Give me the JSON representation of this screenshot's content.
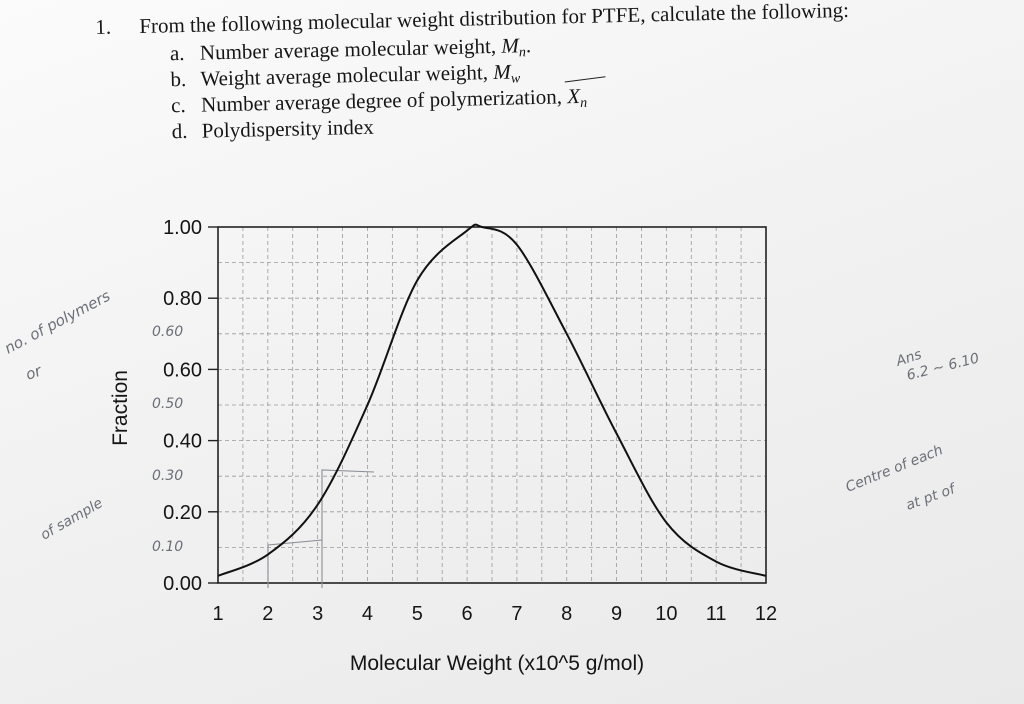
{
  "question": {
    "number": "1.",
    "stem": "From the following molecular weight distribution for PTFE, calculate the following:",
    "items": [
      {
        "letter": "a.",
        "text": "Number average molecular weight, ",
        "symbol": "M",
        "sub": "n",
        "tail": "."
      },
      {
        "letter": "b.",
        "text": "Weight average molecular weight, ",
        "symbol": "M",
        "sub": "w",
        "tail": ""
      },
      {
        "letter": "c.",
        "text": "Number average degree of polymerization, ",
        "symbol": "X",
        "sub": "n",
        "tail": ""
      },
      {
        "letter": "d.",
        "text": "Polydispersity index",
        "symbol": "",
        "sub": "",
        "tail": ""
      }
    ]
  },
  "chart_data": {
    "type": "line",
    "title": "",
    "xlabel": "Molecular Weight (x10^5 g/mol)",
    "ylabel": "Fraction",
    "xlim": [
      1,
      12
    ],
    "ylim": [
      0,
      1
    ],
    "x_ticks": [
      "1",
      "2",
      "3",
      "4",
      "5",
      "6",
      "7",
      "8",
      "9",
      "10",
      "11",
      "12"
    ],
    "y_ticks": [
      "0.00",
      "0.20",
      "0.40",
      "0.60",
      "0.80",
      "1.00"
    ],
    "grid": true,
    "series": [
      {
        "x": [
          1,
          2,
          3,
          4,
          5,
          6,
          6.3,
          7,
          8,
          9,
          10,
          11,
          12
        ],
        "y": [
          0.02,
          0.08,
          0.22,
          0.5,
          0.85,
          0.99,
          1.0,
          0.95,
          0.7,
          0.42,
          0.17,
          0.06,
          0.02
        ]
      }
    ]
  },
  "handwriting": [
    {
      "id": "hw-no-polymers",
      "text": "no. of polymers"
    },
    {
      "id": "hw-or",
      "text": "or"
    },
    {
      "id": "hw-060",
      "text": "0.60"
    },
    {
      "id": "hw-050",
      "text": "0.50"
    },
    {
      "id": "hw-030",
      "text": "0.30"
    },
    {
      "id": "hw-010",
      "text": "0.10"
    },
    {
      "id": "hw-of-sample",
      "text": "of sample"
    },
    {
      "id": "hw-ans",
      "text": "Ans"
    },
    {
      "id": "hw-range",
      "text": "6.2 ~ 6.10"
    },
    {
      "id": "hw-centre",
      "text": "Centre of each"
    },
    {
      "id": "hw-at-pt",
      "text": "at pt of"
    }
  ],
  "colors": {
    "ink": "#151515",
    "grid": "#9a9a9a",
    "pencil": "#6b6f78",
    "paper": "#f4f4f4"
  }
}
